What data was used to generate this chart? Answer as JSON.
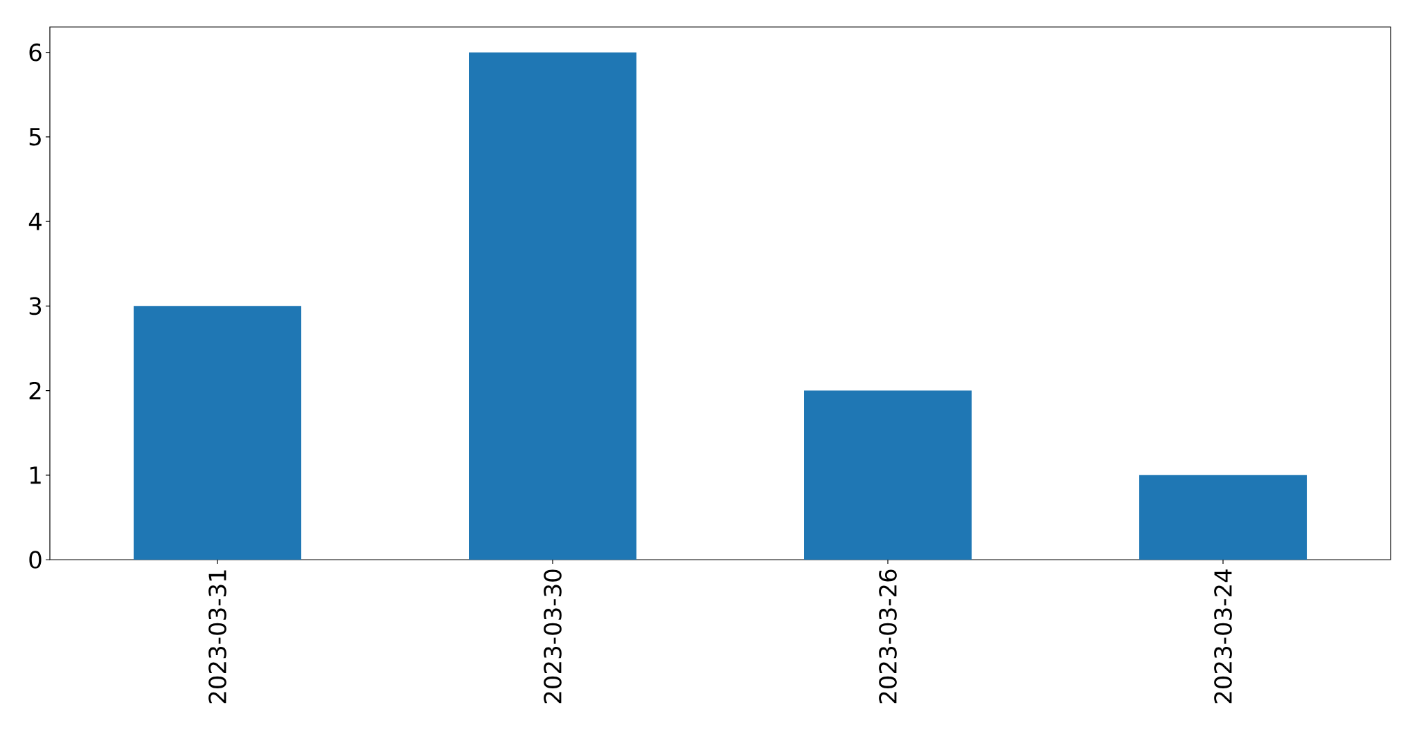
{
  "chart_data": {
    "type": "bar",
    "categories": [
      "2023-03-31",
      "2023-03-30",
      "2023-03-26",
      "2023-03-24"
    ],
    "values": [
      3,
      6,
      2,
      1
    ],
    "color": "#1f77b4",
    "ylim": [
      0,
      6.3
    ],
    "yticks": [
      0,
      1,
      2,
      3,
      4,
      5,
      6
    ]
  }
}
